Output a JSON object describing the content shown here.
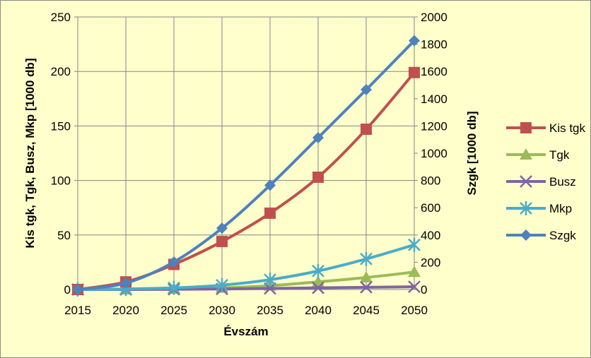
{
  "chart_data": {
    "type": "line",
    "title": "",
    "xlabel": "Évszám",
    "ylabel": "Kis tgk, Tgk, Busz, Mkp [1000 db]",
    "y2label": "Szgk [1000 db]",
    "x": [
      2015,
      2020,
      2025,
      2030,
      2035,
      2040,
      2045,
      2050
    ],
    "ylim": [
      0,
      250
    ],
    "y2lim": [
      0,
      2000
    ],
    "yticks": [
      0,
      50,
      100,
      150,
      200,
      250
    ],
    "y2ticks": [
      0,
      200,
      400,
      600,
      800,
      1000,
      1200,
      1400,
      1600,
      1800,
      2000
    ],
    "grid": true,
    "legend_position": "right",
    "series": [
      {
        "name": "Kis tgk",
        "axis": "left",
        "color": "#C0504D",
        "marker": "square",
        "values": [
          0,
          7,
          23,
          44,
          70,
          103,
          147,
          199
        ]
      },
      {
        "name": "Tgk",
        "axis": "left",
        "color": "#9BBB59",
        "marker": "triangle",
        "values": [
          0,
          0,
          0.5,
          1.5,
          3.5,
          7,
          11,
          16
        ]
      },
      {
        "name": "Busz",
        "axis": "left",
        "color": "#8064A2",
        "marker": "x",
        "values": [
          0,
          0,
          0.2,
          0.5,
          1,
          1.5,
          2,
          2.5
        ]
      },
      {
        "name": "Mkp",
        "axis": "left",
        "color": "#4BACC6",
        "marker": "star",
        "values": [
          0,
          0.5,
          1.5,
          4,
          9,
          17,
          28,
          41
        ]
      },
      {
        "name": "Szgk",
        "axis": "right",
        "color": "#4F81BD",
        "marker": "diamond",
        "values": [
          0,
          47,
          202,
          450,
          765,
          1114,
          1466,
          1826
        ]
      }
    ]
  }
}
